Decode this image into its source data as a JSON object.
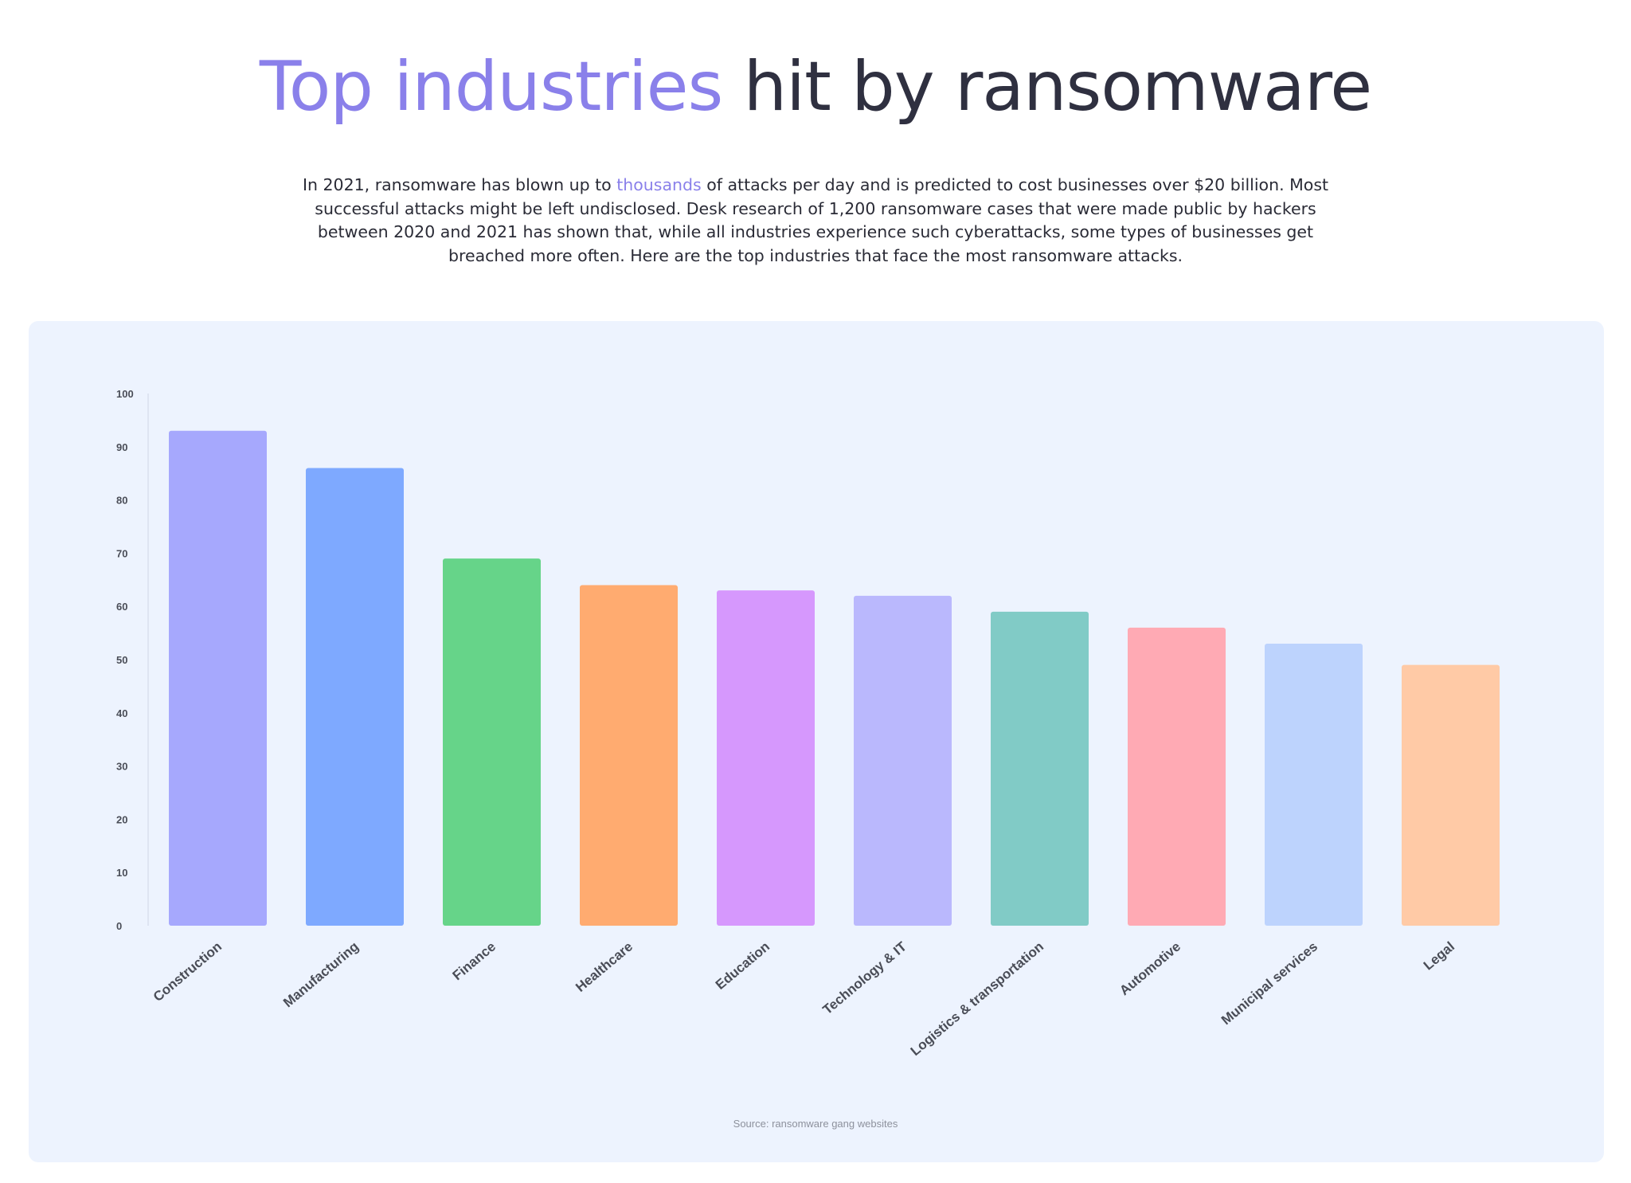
{
  "header": {
    "title_accent": "Top industries",
    "title_rest": "hit by ransomware",
    "intro_part1": "In 2021, ransomware has blown up to ",
    "intro_link": "thousands",
    "intro_part2": " of attacks per day and is predicted to cost businesses over $20 billion. Most successful attacks might be left undisclosed. Desk research of 1,200 ransomware cases that were made public by hackers between 2020 and 2021 has shown that, while all industries experience such cyberattacks, some types of businesses get breached more often. Here are the top industries that face the most ransomware attacks."
  },
  "colors": {
    "accent": "#8a80ea",
    "title_dark": "#2f3040",
    "panel_bg": "#edf3fe"
  },
  "chart_data": {
    "type": "bar",
    "categories": [
      "Construction",
      "Manufacturing",
      "Finance",
      "Healthcare",
      "Education",
      "Technology & IT",
      "Logistics & transportation",
      "Automotive",
      "Municipal services",
      "Legal"
    ],
    "values": [
      93,
      86,
      69,
      64,
      63,
      62,
      59,
      56,
      53,
      49
    ],
    "bar_colors": [
      "#a6a8fd",
      "#7ea9ff",
      "#66d489",
      "#ffab70",
      "#d698fd",
      "#bab8fd",
      "#81cbc6",
      "#ffaab4",
      "#bdd3fd",
      "#ffcaa6"
    ],
    "yticks": [
      "0",
      "10",
      "20",
      "30",
      "40",
      "50",
      "60",
      "70",
      "80",
      "90",
      "100"
    ],
    "ylim": [
      0,
      100
    ],
    "grid": false,
    "xlabel": "",
    "ylabel": "",
    "source": "Source: ransomware gang websites"
  }
}
